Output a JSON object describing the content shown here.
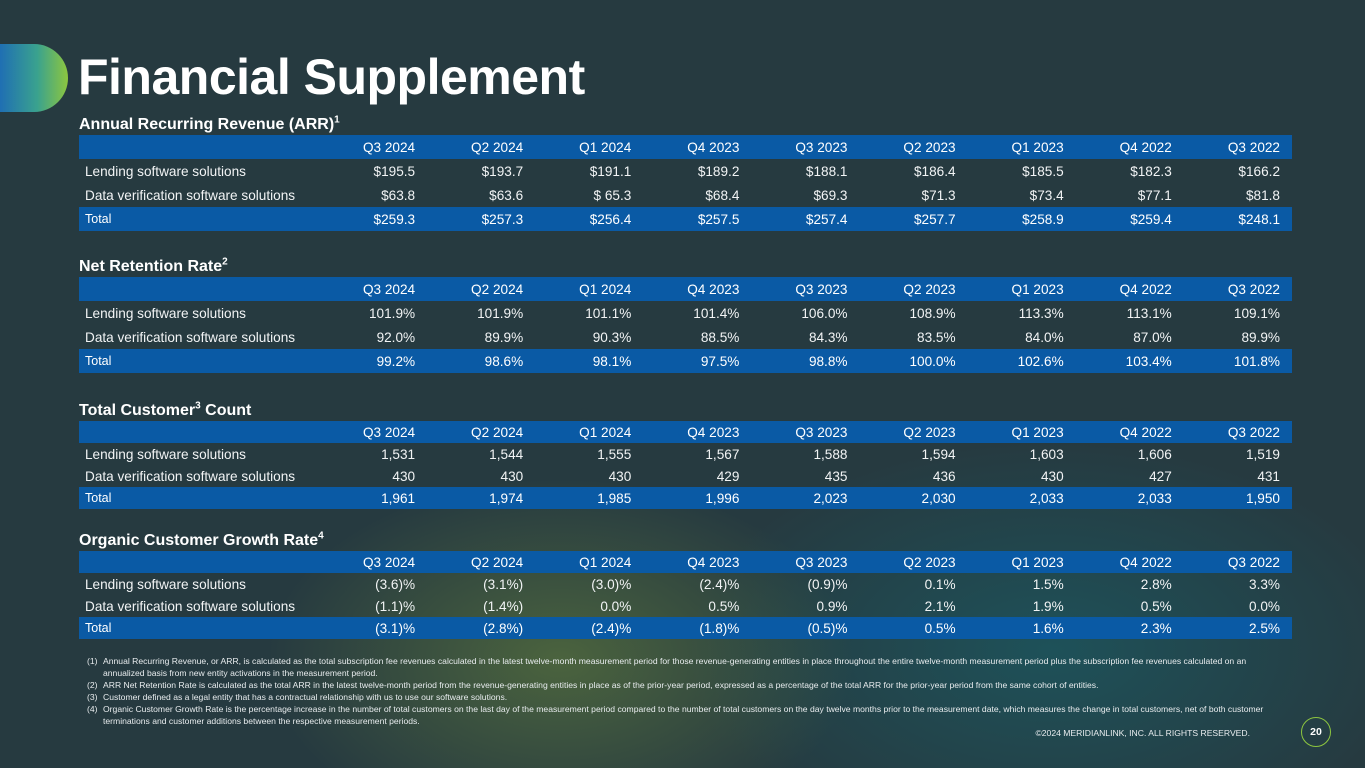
{
  "page": {
    "title": "Financial Supplement",
    "copyright": "©2024 MERIDIANLINK, INC. ALL RIGHTS RESERVED.",
    "page_number": "20"
  },
  "columns": [
    "Q3 2024",
    "Q2 2024",
    "Q1 2024",
    "Q4 2023",
    "Q3 2023",
    "Q2 2023",
    "Q1 2023",
    "Q4 2022",
    "Q3 2022"
  ],
  "sections": [
    {
      "title": "Annual Recurring Revenue (ARR)",
      "sup": "1",
      "rows": [
        {
          "label": "Lending software solutions",
          "values": [
            "$195.5",
            "$193.7",
            "$191.1",
            "$189.2",
            "$188.1",
            "$186.4",
            "$185.5",
            "$182.3",
            "$166.2"
          ]
        },
        {
          "label": "Data verification software solutions",
          "values": [
            "$63.8",
            "$63.6",
            "$ 65.3",
            "$68.4",
            "$69.3",
            "$71.3",
            "$73.4",
            "$77.1",
            "$81.8"
          ]
        }
      ],
      "total": {
        "label": "Total",
        "values": [
          "$259.3",
          "$257.3",
          "$256.4",
          "$257.5",
          "$257.4",
          "$257.7",
          "$258.9",
          "$259.4",
          "$248.1"
        ]
      }
    },
    {
      "title": "Net Retention Rate",
      "sup": "2",
      "rows": [
        {
          "label": "Lending software solutions",
          "values": [
            "101.9%",
            "101.9%",
            "101.1%",
            "101.4%",
            "106.0%",
            "108.9%",
            "113.3%",
            "113.1%",
            "109.1%"
          ]
        },
        {
          "label": "Data verification software solutions",
          "values": [
            "92.0%",
            "89.9%",
            "90.3%",
            "88.5%",
            "84.3%",
            "83.5%",
            "84.0%",
            "87.0%",
            "89.9%"
          ]
        }
      ],
      "total": {
        "label": "Total",
        "values": [
          "99.2%",
          "98.6%",
          "98.1%",
          "97.5%",
          "98.8%",
          "100.0%",
          "102.6%",
          "103.4%",
          "101.8%"
        ]
      }
    },
    {
      "title_pre": "Total Customer",
      "sup": "3",
      "title_post": " Count",
      "rows": [
        {
          "label": "Lending software solutions",
          "values": [
            "1,531",
            "1,544",
            "1,555",
            "1,567",
            "1,588",
            "1,594",
            "1,603",
            "1,606",
            "1,519"
          ]
        },
        {
          "label": "Data verification software solutions",
          "values": [
            "430",
            "430",
            "430",
            "429",
            "435",
            "436",
            "430",
            "427",
            "431"
          ]
        }
      ],
      "total": {
        "label": "Total",
        "values": [
          "1,961",
          "1,974",
          "1,985",
          "1,996",
          "2,023",
          "2,030",
          "2,033",
          "2,033",
          "1,950"
        ]
      }
    },
    {
      "title": "Organic Customer Growth Rate",
      "sup": "4",
      "rows": [
        {
          "label": "Lending software solutions",
          "values": [
            "(3.6)%",
            "(3.1%)",
            "(3.0)%",
            "(2.4)%",
            "(0.9)%",
            "0.1%",
            "1.5%",
            "2.8%",
            "3.3%"
          ]
        },
        {
          "label": "Data verification software solutions",
          "values": [
            "(1.1)%",
            "(1.4%)",
            "0.0%",
            "0.5%",
            "0.9%",
            "2.1%",
            "1.9%",
            "0.5%",
            "0.0%"
          ]
        }
      ],
      "total": {
        "label": "Total",
        "values": [
          "(3.1)%",
          "(2.8%)",
          "(2.4)%",
          "(1.8)%",
          "(0.5)%",
          "0.5%",
          "1.6%",
          "2.3%",
          "2.5%"
        ]
      }
    }
  ],
  "footnotes": [
    {
      "num": "(1)",
      "text": "Annual Recurring Revenue, or ARR, is calculated as the total subscription fee revenues calculated in the latest twelve-month measurement period for those revenue-generating entities in place throughout the entire twelve-month measurement period plus the subscription fee revenues calculated on an annualized basis from new entity activations in the measurement period."
    },
    {
      "num": "(2)",
      "text": "ARR Net Retention Rate is calculated as the total ARR in the latest twelve-month period from the revenue-generating entities in place as of the prior-year period, expressed as a percentage of the total ARR for the prior-year period from the same cohort of entities."
    },
    {
      "num": "(3)",
      "text": "Customer defined as a legal entity that has a contractual relationship with us to use our software solutions."
    },
    {
      "num": "(4)",
      "text": "Organic Customer Growth Rate is the percentage increase in the number of total customers on the last day of the measurement period compared to the number of total customers on the day twelve months prior to the measurement date, which measures the change in total customers, net of both customer terminations and customer additions between the respective measurement periods."
    }
  ]
}
